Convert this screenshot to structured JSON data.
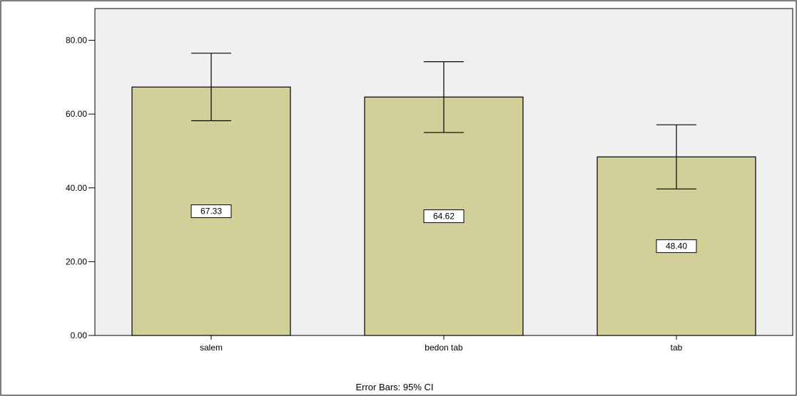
{
  "chart_data": {
    "type": "bar",
    "categories": [
      "salem",
      "bedon tab",
      "tab"
    ],
    "values": [
      67.33,
      64.62,
      48.4
    ],
    "data_labels": [
      "67.33",
      "64.62",
      "48.40"
    ],
    "error_bars": {
      "lower": [
        58.2,
        55.0,
        39.7
      ],
      "upper": [
        76.5,
        74.2,
        57.1
      ]
    },
    "ylim": [
      0,
      80
    ],
    "y_ticks": [
      "0.00",
      "20.00",
      "40.00",
      "60.00",
      "80.00"
    ],
    "footnote": "Error Bars: 95% CI",
    "grid": false,
    "colors": {
      "bar_fill": "#d3cf98",
      "bar_stroke": "#000000",
      "plot_background": "#f0f0f0",
      "label_box": "#ffffff"
    }
  }
}
